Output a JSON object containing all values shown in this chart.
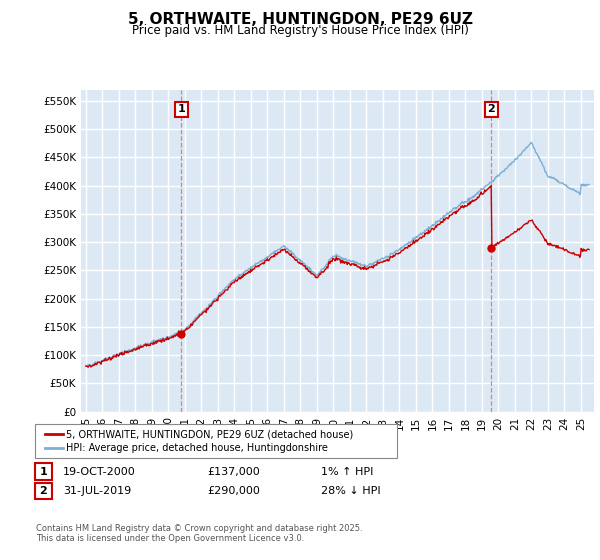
{
  "title": "5, ORTHWAITE, HUNTINGDON, PE29 6UZ",
  "subtitle": "Price paid vs. HM Land Registry's House Price Index (HPI)",
  "ylabel_ticks": [
    "£0",
    "£50K",
    "£100K",
    "£150K",
    "£200K",
    "£250K",
    "£300K",
    "£350K",
    "£400K",
    "£450K",
    "£500K",
    "£550K"
  ],
  "ytick_values": [
    0,
    50000,
    100000,
    150000,
    200000,
    250000,
    300000,
    350000,
    400000,
    450000,
    500000,
    550000
  ],
  "ylim": [
    0,
    570000
  ],
  "background_color": "#ffffff",
  "plot_bg_color": "#dce9f5",
  "grid_color": "#ffffff",
  "hpi_line_color": "#7bafd4",
  "price_line_color": "#cc0000",
  "vline_color": "#e08080",
  "legend_label_price": "5, ORTHWAITE, HUNTINGDON, PE29 6UZ (detached house)",
  "legend_label_hpi": "HPI: Average price, detached house, Huntingdonshire",
  "annotation1_date": "19-OCT-2000",
  "annotation1_price": "£137,000",
  "annotation1_pct": "1% ↑ HPI",
  "annotation2_date": "31-JUL-2019",
  "annotation2_price": "£290,000",
  "annotation2_pct": "28% ↓ HPI",
  "footer": "Contains HM Land Registry data © Crown copyright and database right 2025.\nThis data is licensed under the Open Government Licence v3.0.",
  "sale1_x": 2000.79,
  "sale1_y": 137000,
  "sale2_x": 2019.58,
  "sale2_y": 290000,
  "xlim_left": 1994.7,
  "xlim_right": 2025.8
}
